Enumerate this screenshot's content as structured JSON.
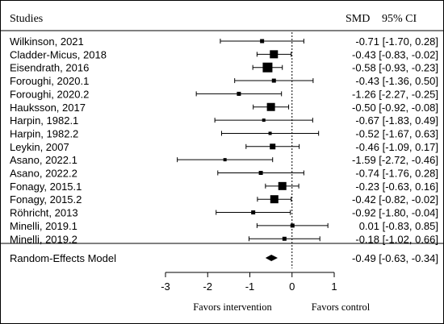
{
  "header": {
    "studies_label": "Studies",
    "smd_label": "SMD",
    "ci_label": "95% CI"
  },
  "chart_data": {
    "type": "forest",
    "title": "",
    "xlim": [
      -3,
      1
    ],
    "xticks": [
      -3,
      -2,
      -1,
      0,
      1
    ],
    "reference_line": 0,
    "xlabel_left": "Favors intervention",
    "xlabel_right": "Favors control",
    "studies": [
      {
        "name": "Wilkinson, 2021",
        "smd": -0.71,
        "lower": -1.7,
        "upper": 0.28,
        "ci_text": "-0.71 [-1.70, 0.28]",
        "weight": "small"
      },
      {
        "name": "Cladder-Micus, 2018",
        "smd": -0.43,
        "lower": -0.83,
        "upper": -0.02,
        "ci_text": "-0.43 [-0.83, -0.02]",
        "weight": "large"
      },
      {
        "name": "Eisendrath, 2016",
        "smd": -0.58,
        "lower": -0.93,
        "upper": -0.23,
        "ci_text": "-0.58 [-0.93, -0.23]",
        "weight": "largest"
      },
      {
        "name": "Foroughi, 2020.1",
        "smd": -0.43,
        "lower": -1.36,
        "upper": 0.5,
        "ci_text": "-0.43 [-1.36, 0.50]",
        "weight": "small"
      },
      {
        "name": "Foroughi, 2020.2",
        "smd": -1.26,
        "lower": -2.27,
        "upper": -0.25,
        "ci_text": "-1.26 [-2.27, -0.25]",
        "weight": "small"
      },
      {
        "name": "Hauksson, 2017",
        "smd": -0.5,
        "lower": -0.92,
        "upper": -0.08,
        "ci_text": "-0.50 [-0.92, -0.08]",
        "weight": "large"
      },
      {
        "name": "Harpin, 1982.1",
        "smd": -0.67,
        "lower": -1.83,
        "upper": 0.49,
        "ci_text": "-0.67 [-1.83, 0.49]",
        "weight": "tiny"
      },
      {
        "name": "Harpin, 1982.2",
        "smd": -0.52,
        "lower": -1.67,
        "upper": 0.63,
        "ci_text": "-0.52 [-1.67, 0.63]",
        "weight": "tiny"
      },
      {
        "name": "Leykin, 2007",
        "smd": -0.46,
        "lower": -1.09,
        "upper": 0.17,
        "ci_text": "-0.46 [-1.09, 0.17]",
        "weight": "medium"
      },
      {
        "name": "Asano, 2022.1",
        "smd": -1.59,
        "lower": -2.72,
        "upper": -0.46,
        "ci_text": "-1.59 [-2.72, -0.46]",
        "weight": "tiny"
      },
      {
        "name": "Asano, 2022.2",
        "smd": -0.74,
        "lower": -1.76,
        "upper": 0.28,
        "ci_text": "-0.74 [-1.76, 0.28]",
        "weight": "small"
      },
      {
        "name": "Fonagy, 2015.1",
        "smd": -0.23,
        "lower": -0.63,
        "upper": 0.16,
        "ci_text": "-0.23 [-0.63, 0.16]",
        "weight": "large"
      },
      {
        "name": "Fonagy, 2015.2",
        "smd": -0.42,
        "lower": -0.82,
        "upper": -0.02,
        "ci_text": "-0.42 [-0.82, -0.02]",
        "weight": "large"
      },
      {
        "name": "Röhricht, 2013",
        "smd": -0.92,
        "lower": -1.8,
        "upper": -0.04,
        "ci_text": "-0.92 [-1.80, -0.04]",
        "weight": "small"
      },
      {
        "name": "Minelli, 2019.1",
        "smd": 0.01,
        "lower": -0.83,
        "upper": 0.85,
        "ci_text": "0.01 [-0.83, 0.85]",
        "weight": "small"
      },
      {
        "name": "Minelli, 2019.2",
        "smd": -0.18,
        "lower": -1.02,
        "upper": 0.66,
        "ci_text": "-0.18 [-1.02, 0.66]",
        "weight": "small"
      }
    ],
    "summary": {
      "name": "Random-Effects Model",
      "smd": -0.49,
      "lower": -0.63,
      "upper": -0.34,
      "ci_text": "-0.49 [-0.63, -0.34]"
    }
  }
}
